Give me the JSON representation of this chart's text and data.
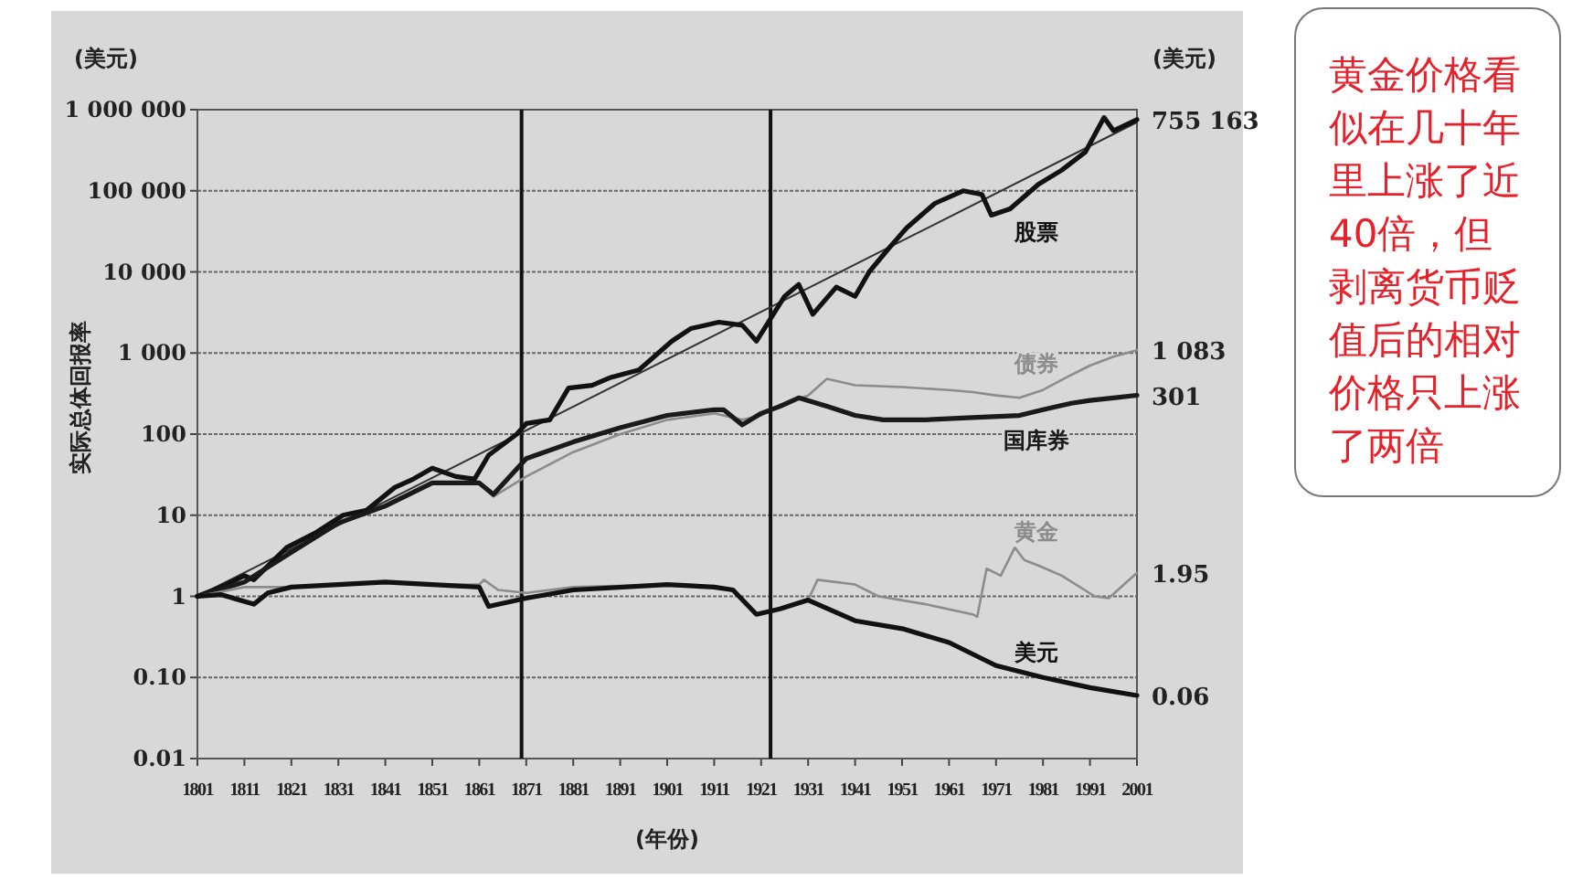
{
  "chart_data": {
    "type": "line",
    "xlabel": "(年份)",
    "ylabel": "实际总体回报率",
    "annotations": [
      "(美元)",
      "(美元)",
      "黄金价格看似在几十年里上涨了近40倍，但剥离货币贬值后的相对价格只上涨了两倍"
    ],
    "log": true,
    "grid": "y",
    "xlim": [
      1801,
      2001
    ],
    "xticks": [
      1801,
      1811,
      1821,
      1831,
      1841,
      1851,
      1861,
      1871,
      1881,
      1891,
      1901,
      1911,
      1921,
      1931,
      1941,
      1951,
      1961,
      1971,
      1981,
      1991,
      2001
    ],
    "ylim": [
      0.01,
      1000000
    ],
    "yticks": [
      {
        "value": 0.01,
        "label": "0.01"
      },
      {
        "value": 0.1,
        "label": "0.10"
      },
      {
        "value": 1,
        "label": "1"
      },
      {
        "value": 10,
        "label": "10"
      },
      {
        "value": 100,
        "label": "100"
      },
      {
        "value": 1000,
        "label": "1 000"
      },
      {
        "value": 10000,
        "label": "10 000"
      },
      {
        "value": 100000,
        "label": "100 000"
      },
      {
        "value": 1000000,
        "label": "1 000 000"
      }
    ],
    "ref_lines": [
      {
        "axis": "x",
        "value": 1870,
        "color": "#111111"
      },
      {
        "axis": "x",
        "value": 1923,
        "color": "#111111"
      }
    ],
    "series": [
      {
        "type": "line",
        "color": "#333333",
        "x": [
          1801,
          2001
        ],
        "values": [
          1,
          700000
        ]
      },
      {
        "type": "line",
        "name": "股票",
        "color": "#111111",
        "x": [
          1801,
          1806,
          1811,
          1813,
          1820,
          1826,
          1832,
          1837,
          1843,
          1847,
          1851,
          1856,
          1860,
          1863,
          1869,
          1871,
          1876,
          1880,
          1885,
          1889,
          1895,
          1902,
          1906,
          1912,
          1917,
          1920,
          1926,
          1929,
          1932,
          1937,
          1941,
          1944,
          1948,
          1952,
          1958,
          1964,
          1968,
          1970,
          1974,
          1980,
          1985,
          1990,
          1994,
          1996,
          2001
        ],
        "values": [
          1,
          1.3,
          1.8,
          1.6,
          4,
          6,
          10,
          11.5,
          22,
          28,
          38,
          30,
          28,
          55,
          100,
          135,
          150,
          370,
          400,
          500,
          620,
          1400,
          2000,
          2400,
          2200,
          1400,
          5000,
          7000,
          3000,
          6500,
          5000,
          10000,
          19000,
          35000,
          70000,
          100000,
          90000,
          50000,
          60000,
          120000,
          180000,
          300000,
          800000,
          550000,
          755163
        ],
        "value_labels": [
          null,
          null,
          null,
          null,
          null,
          null,
          null,
          null,
          null,
          null,
          null,
          null,
          null,
          null,
          null,
          null,
          null,
          null,
          null,
          null,
          null,
          null,
          null,
          null,
          null,
          null,
          null,
          null,
          null,
          null,
          null,
          null,
          null,
          null,
          null,
          null,
          null,
          null,
          null,
          null,
          null,
          null,
          null,
          null,
          "755 163"
        ]
      },
      {
        "type": "line",
        "name": "债券",
        "color": "#8c8c8c",
        "x": [
          1801,
          1811,
          1821,
          1831,
          1841,
          1851,
          1861,
          1864,
          1871,
          1881,
          1891,
          1901,
          1911,
          1917,
          1921,
          1925,
          1931,
          1935,
          1941,
          1951,
          1961,
          1966,
          1971,
          1976,
          1981,
          1986,
          1991,
          1996,
          2001
        ],
        "values": [
          1,
          1.5,
          3.5,
          8,
          13,
          25,
          25,
          17,
          30,
          60,
          100,
          150,
          180,
          150,
          170,
          230,
          300,
          480,
          400,
          380,
          350,
          330,
          300,
          280,
          350,
          500,
          700,
          900,
          1083
        ],
        "value_labels": [
          null,
          null,
          null,
          null,
          null,
          null,
          null,
          null,
          null,
          null,
          null,
          null,
          null,
          null,
          null,
          null,
          null,
          null,
          null,
          null,
          null,
          null,
          null,
          null,
          null,
          null,
          null,
          null,
          "1 083"
        ]
      },
      {
        "type": "line",
        "name": "国库券",
        "color": "#1a1a1a",
        "x": [
          1801,
          1811,
          1821,
          1831,
          1841,
          1851,
          1861,
          1864,
          1871,
          1881,
          1891,
          1901,
          1911,
          1913,
          1917,
          1921,
          1925,
          1929,
          1935,
          1941,
          1947,
          1956,
          1966,
          1976,
          1981,
          1987,
          1991,
          1996,
          2001
        ],
        "values": [
          1,
          1.5,
          3.5,
          8,
          13,
          25,
          25,
          18,
          50,
          80,
          120,
          170,
          200,
          200,
          130,
          180,
          220,
          280,
          220,
          170,
          150,
          150,
          160,
          170,
          200,
          240,
          260,
          280,
          301
        ],
        "value_labels": [
          null,
          null,
          null,
          null,
          null,
          null,
          null,
          null,
          null,
          null,
          null,
          null,
          null,
          null,
          null,
          null,
          null,
          null,
          null,
          null,
          null,
          null,
          null,
          null,
          null,
          null,
          null,
          null,
          "301"
        ]
      },
      {
        "type": "line",
        "name": "黄金",
        "color": "#8c8c8c",
        "x": [
          1801,
          1811,
          1821,
          1831,
          1841,
          1851,
          1861,
          1862,
          1865,
          1871,
          1881,
          1901,
          1911,
          1915,
          1920,
          1925,
          1931,
          1933,
          1941,
          1946,
          1956,
          1966,
          1967,
          1969,
          1972,
          1975,
          1977,
          1980,
          1985,
          1992,
          1995,
          2001
        ],
        "values": [
          1,
          1.3,
          1.3,
          1.4,
          1.5,
          1.4,
          1.4,
          1.6,
          1.2,
          1.1,
          1.3,
          1.4,
          1.3,
          1.2,
          0.6,
          0.7,
          0.9,
          1.6,
          1.4,
          1.0,
          0.8,
          0.6,
          0.56,
          2.2,
          1.8,
          4.0,
          2.8,
          2.4,
          1.8,
          1.0,
          0.95,
          1.95
        ],
        "value_labels": [
          null,
          null,
          null,
          null,
          null,
          null,
          null,
          null,
          null,
          null,
          null,
          null,
          null,
          null,
          null,
          null,
          null,
          null,
          null,
          null,
          null,
          null,
          null,
          null,
          null,
          null,
          null,
          null,
          null,
          null,
          null,
          "1.95"
        ]
      },
      {
        "type": "line",
        "name": "美元",
        "color": "#111111",
        "x": [
          1801,
          1806,
          1813,
          1816,
          1821,
          1841,
          1861,
          1863,
          1871,
          1881,
          1901,
          1911,
          1915,
          1920,
          1925,
          1931,
          1941,
          1951,
          1961,
          1971,
          1981,
          1991,
          2001
        ],
        "values": [
          1,
          1.05,
          0.8,
          1.1,
          1.3,
          1.5,
          1.3,
          0.75,
          0.95,
          1.2,
          1.4,
          1.3,
          1.2,
          0.6,
          0.7,
          0.9,
          0.5,
          0.4,
          0.27,
          0.14,
          0.1,
          0.075,
          0.06
        ],
        "value_labels": [
          null,
          null,
          null,
          null,
          null,
          null,
          null,
          null,
          null,
          null,
          null,
          null,
          null,
          null,
          null,
          null,
          null,
          null,
          null,
          null,
          null,
          null,
          "0.06"
        ]
      }
    ]
  }
}
